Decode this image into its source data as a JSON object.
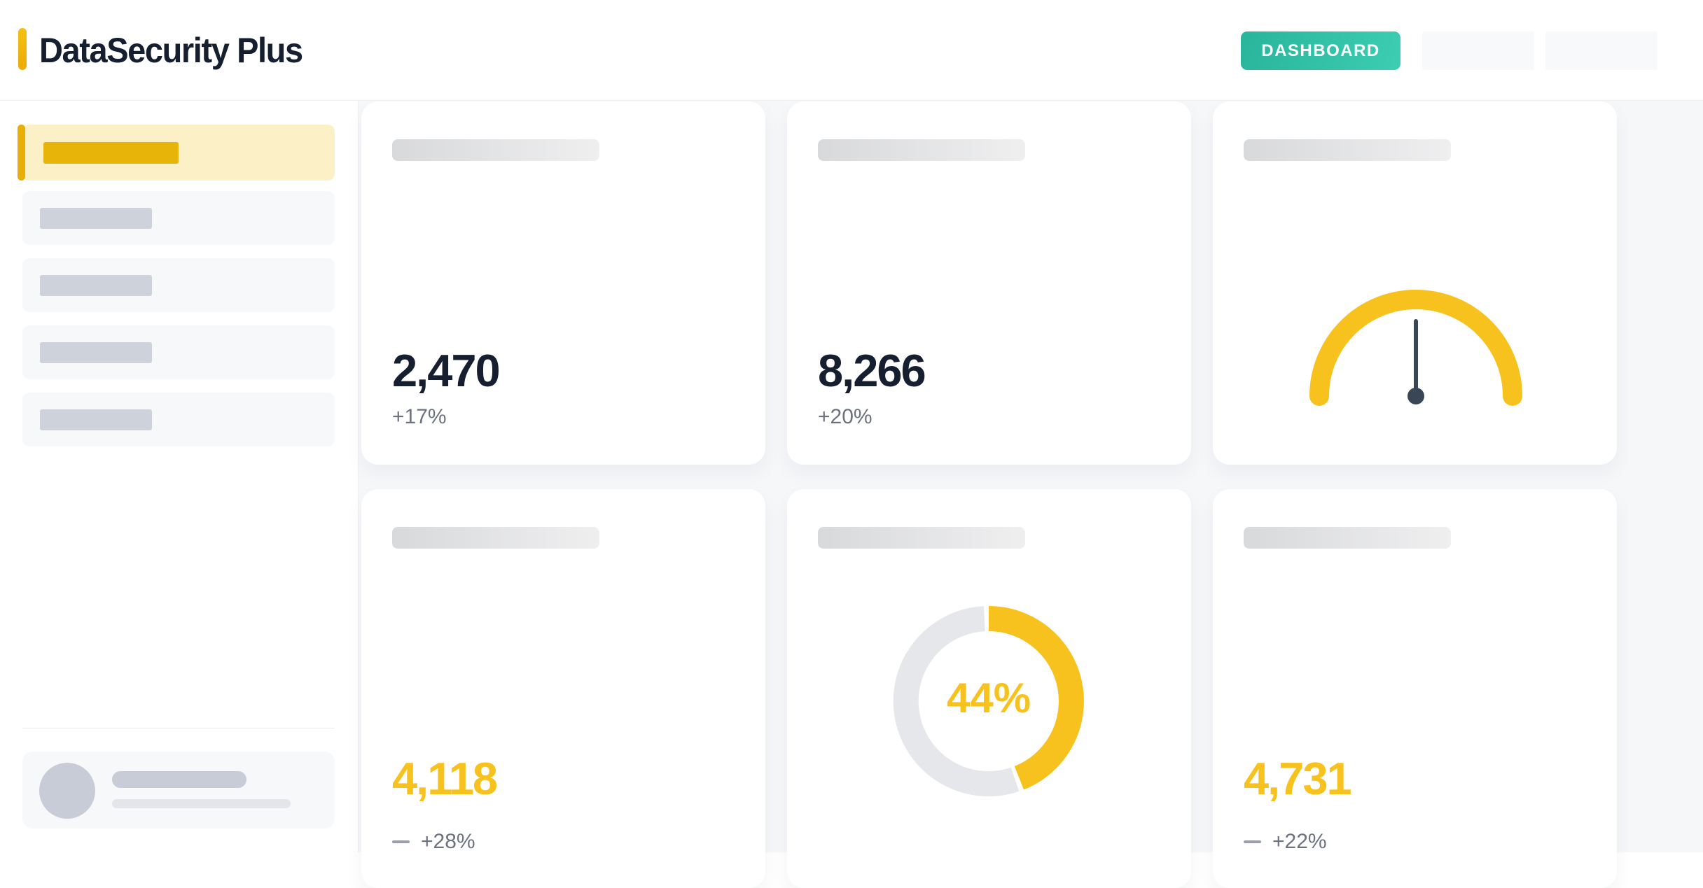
{
  "header": {
    "app_title": "DataSecurity Plus",
    "dashboard_label": "DASHBOARD"
  },
  "cards": {
    "stat1": {
      "value": "2,470",
      "delta": "+17%"
    },
    "stat2": {
      "value": "8,266",
      "delta": "+20%"
    },
    "gauge": {
      "value_percent": 50
    },
    "stat3": {
      "value": "4,118",
      "delta": "+28%"
    },
    "donut": {
      "percent": 44,
      "label": "44%"
    },
    "stat4": {
      "value": "4,731",
      "delta": "+22%"
    }
  },
  "colors": {
    "brand_yellow": "#F8C21E",
    "gold_accent": "#E8AF06",
    "teal_button": "#2EBDA2",
    "navy_text": "#161F30",
    "gray_text": "#6C7380",
    "donut_track": "#E5E7EA",
    "needle": "#394656"
  },
  "chart_data": [
    {
      "type": "gauge",
      "position": "top-right-card",
      "min": 0,
      "max": 100,
      "value_percent": 50,
      "arc_span_degrees": 180,
      "arc_color": "#F8C21E",
      "needle_color": "#394656",
      "note": "semicircular gauge, needle pointing straight up (~50%)"
    },
    {
      "type": "donut",
      "position": "bottom-middle-card",
      "series": [
        {
          "label": "value",
          "value": 44
        },
        {
          "label": "remainder",
          "value": 56
        }
      ],
      "center_label": "44%",
      "colors": [
        "#F8C21E",
        "#E5E7EA"
      ],
      "start_angle": "12 o'clock",
      "direction": "clockwise"
    }
  ]
}
